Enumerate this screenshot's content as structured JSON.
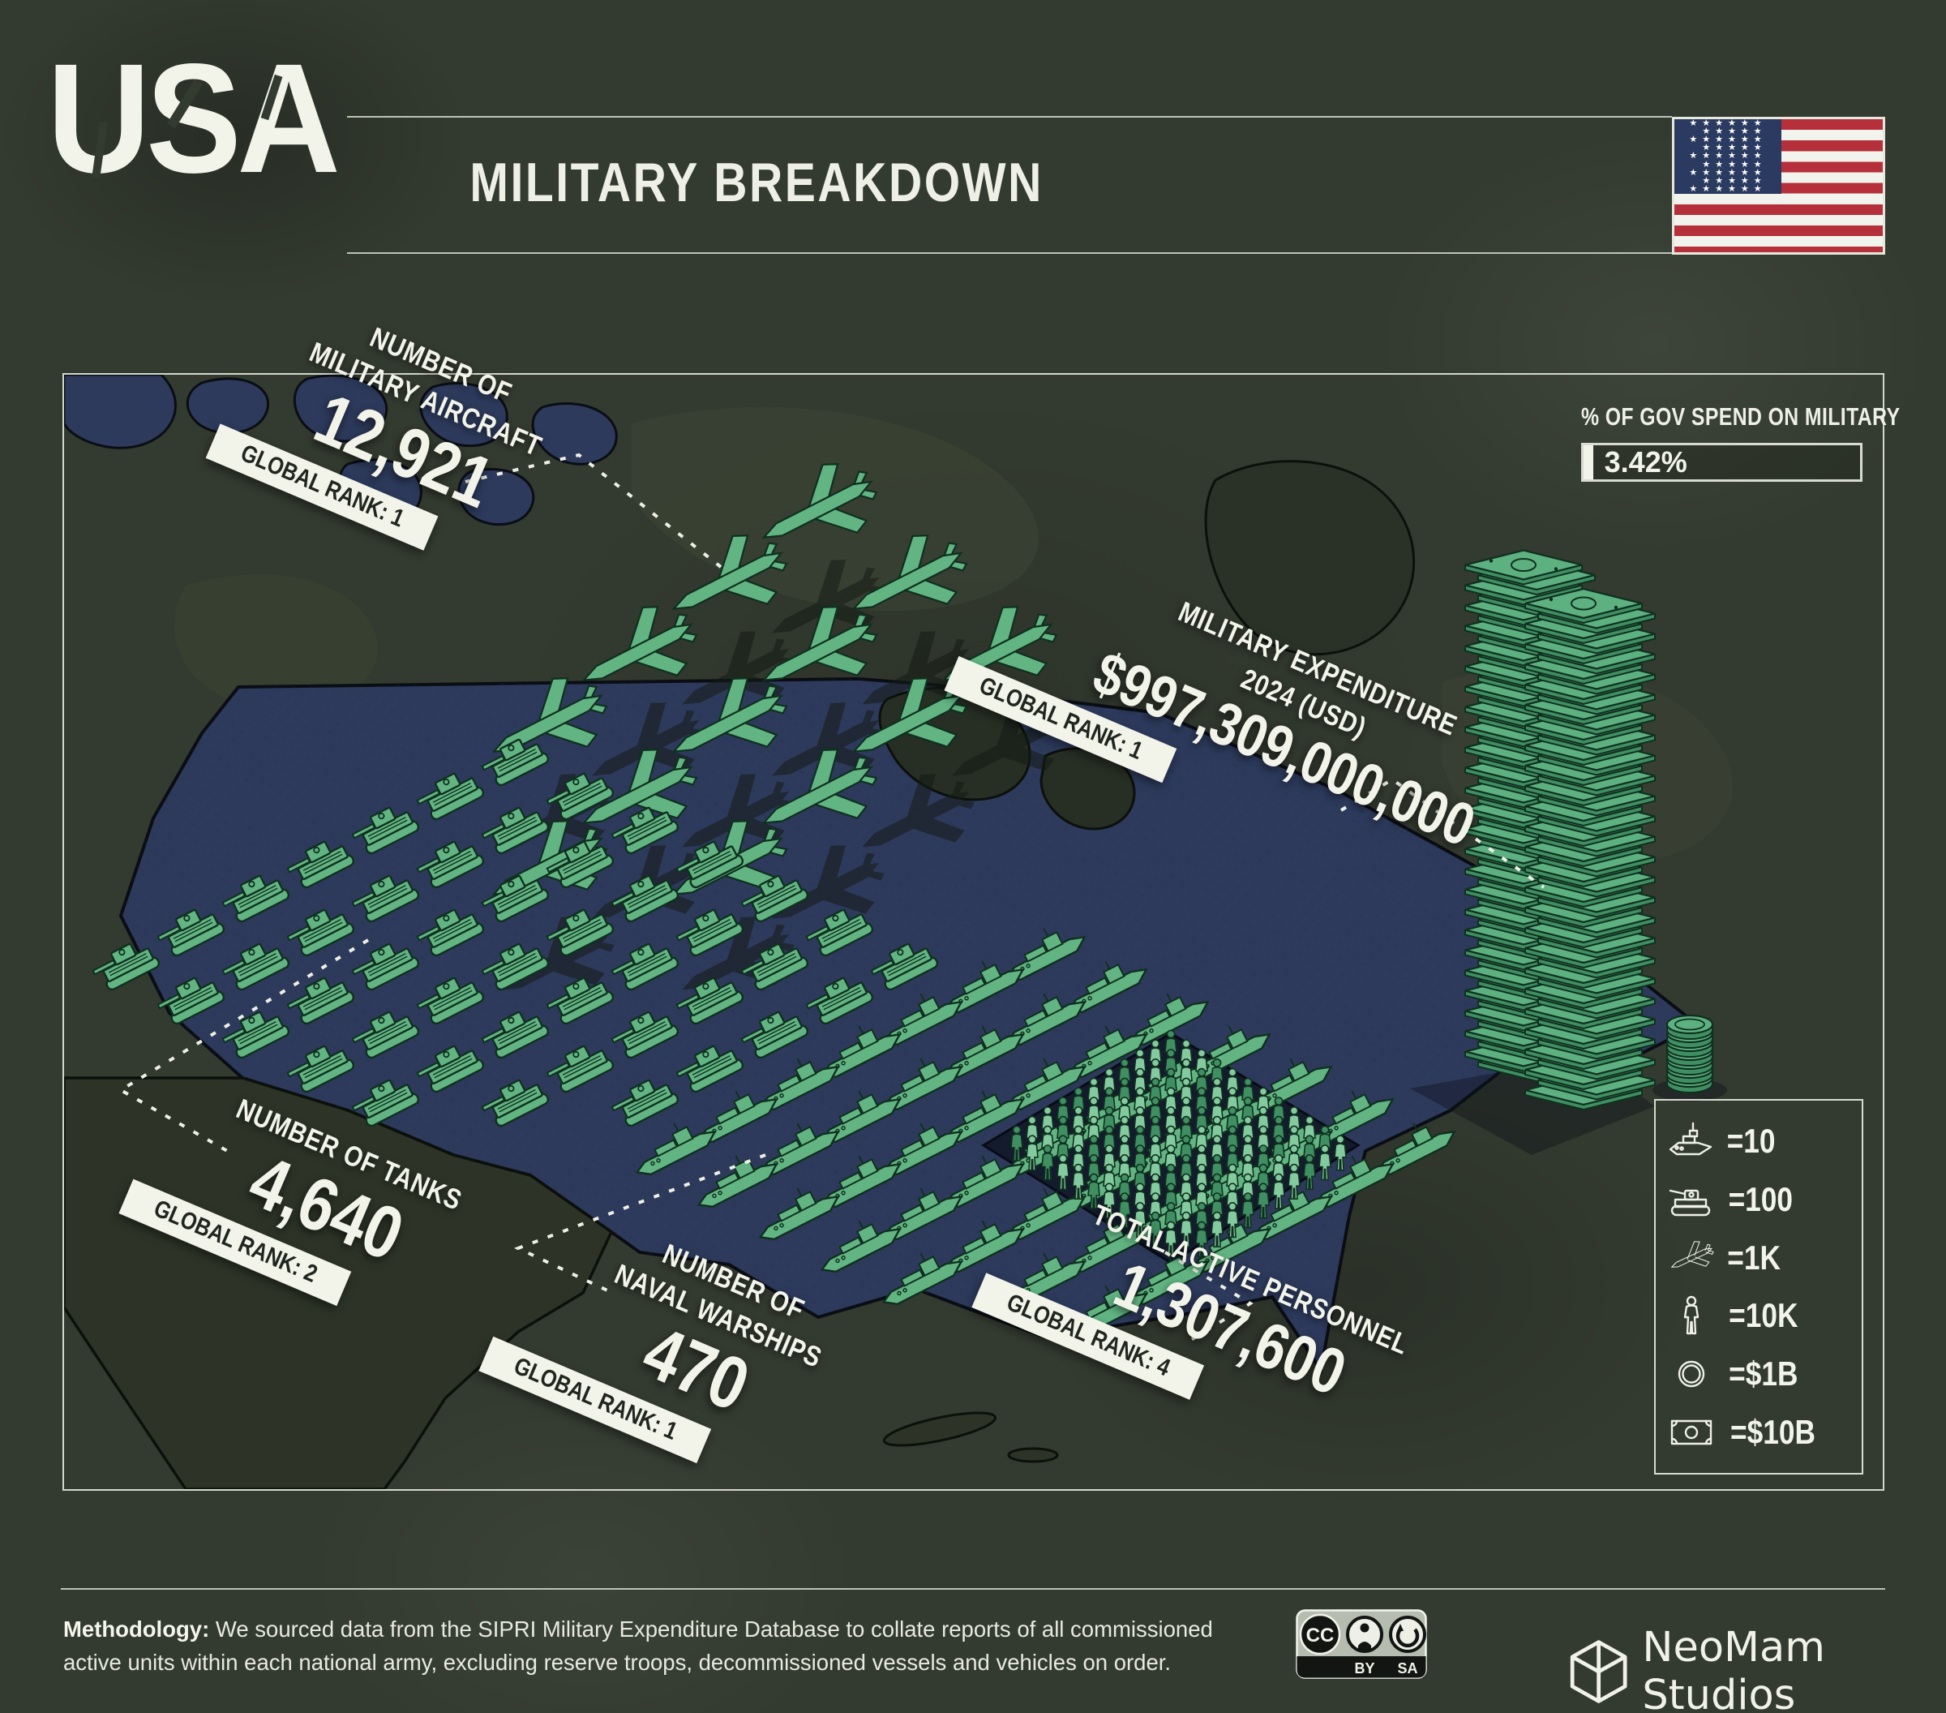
{
  "header": {
    "country": "USA",
    "title": "MILITARY BREAKDOWN"
  },
  "gov_spend": {
    "label": "% OF GOV SPEND ON MILITARY",
    "value_label": "3.42%"
  },
  "stats": {
    "aircraft": {
      "line1": "NUMBER OF",
      "line2": "MILITARY AIRCRAFT",
      "value": "12,921",
      "rank": "GLOBAL RANK: 1"
    },
    "expenditure": {
      "line1": "MILITARY EXPENDITURE",
      "line2": "2024 (USD)",
      "value": "$997,309,000,000",
      "rank": "GLOBAL RANK: 1"
    },
    "tanks": {
      "line1": "NUMBER OF TANKS",
      "value": "4,640",
      "rank": "GLOBAL RANK: 2"
    },
    "warships": {
      "line1": "NUMBER OF",
      "line2": "NAVAL WARSHIPS",
      "value": "470",
      "rank": "GLOBAL RANK: 1"
    },
    "personnel": {
      "line1": "TOTAL ACTIVE PERSONNEL",
      "value": "1,307,600",
      "rank": "GLOBAL RANK: 4"
    }
  },
  "legend": {
    "items": [
      {
        "icon": "warship-icon",
        "label": "=10"
      },
      {
        "icon": "tank-icon",
        "label": "=100"
      },
      {
        "icon": "aircraft-icon",
        "label": "=1K"
      },
      {
        "icon": "personnel-icon",
        "label": "=10K"
      },
      {
        "icon": "coin-icon",
        "label": "=$1B"
      },
      {
        "icon": "banknote-icon",
        "label": "=$10B"
      }
    ]
  },
  "chart_data": {
    "type": "pictogram",
    "title": "USA Military Breakdown",
    "series": [
      {
        "name": "Military aircraft",
        "icon": "aircraft",
        "value": 12921,
        "unit_per_icon": 1000,
        "global_rank": 1
      },
      {
        "name": "Tanks",
        "icon": "tank",
        "value": 4640,
        "unit_per_icon": 100,
        "global_rank": 2
      },
      {
        "name": "Naval warships",
        "icon": "warship",
        "value": 470,
        "unit_per_icon": 10,
        "global_rank": 1
      },
      {
        "name": "Total active personnel",
        "icon": "person",
        "value": 1307600,
        "unit_per_icon": 10000,
        "global_rank": 4
      },
      {
        "name": "Military expenditure 2024 (USD)",
        "icon": "banknote",
        "value": 997309000000,
        "unit_per_icon": 10000000000,
        "secondary_icon": "coin",
        "secondary_unit_per_icon": 1000000000,
        "global_rank": 1
      }
    ],
    "gov_spend_pct_on_military": 3.42
  },
  "footer": {
    "methodology_label": "Methodology:",
    "methodology_text": " We sourced data from the SIPRI Military Expenditure Database to collate reports of all commissioned active units within each national army, excluding reserve troops, decommissioned vessels and vehicles on order.",
    "license": {
      "cc": "CC",
      "by": "BY",
      "sa": "SA"
    },
    "brand": "NeoMam Studios"
  },
  "colors": {
    "accent_green": "#62b583",
    "us_fill": "#2d3a5c",
    "background": "#333a2f",
    "text": "#f0f2e8",
    "flag_red": "#b5303a",
    "flag_blue": "#2b3a60"
  }
}
